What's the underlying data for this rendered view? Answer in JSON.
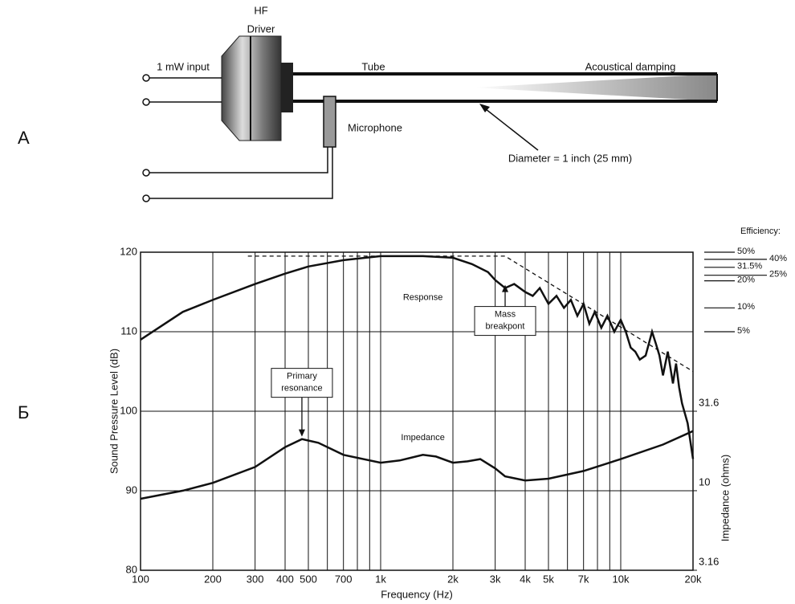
{
  "diagram": {
    "panel_top": "А",
    "panel_bottom": "Б",
    "driver_label": [
      "HF",
      "Driver"
    ],
    "input_label": "1 mW input",
    "tube_label": "Tube",
    "damping_label": "Acoustical damping",
    "microphone_label": "Microphone",
    "diameter_label": "Diameter = 1 inch (25 mm)"
  },
  "chart_data": {
    "type": "line",
    "xlabel": "Frequency (Hz)",
    "ylabel": "Sound Pressure Level (dB)",
    "y2label": "Impedance (ohms)",
    "xscale": "log",
    "y2scale": "log",
    "grid": true,
    "xlim": [
      100,
      20000
    ],
    "ylim": [
      80,
      120
    ],
    "y2lim": [
      3.16,
      316
    ],
    "xticks": [
      100,
      200,
      300,
      400,
      500,
      700,
      {
        "value": 1000,
        "label": "1k"
      },
      {
        "value": 2000,
        "label": "2k"
      },
      {
        "value": 3000,
        "label": "3k"
      },
      {
        "value": 4000,
        "label": "4k"
      },
      {
        "value": 5000,
        "label": "5k"
      },
      {
        "value": 7000,
        "label": "7k"
      },
      {
        "value": 10000,
        "label": "10k"
      },
      {
        "value": 20000,
        "label": "20k"
      }
    ],
    "minor_xticks": [
      600,
      800,
      900,
      6000,
      8000,
      9000
    ],
    "yticks": [
      80,
      90,
      100,
      110,
      120
    ],
    "y2ticks": [
      3.16,
      10,
      31.6
    ],
    "series": [
      {
        "name": "Response",
        "color": "#111111",
        "x": [
          100,
          150,
          200,
          300,
          400,
          500,
          700,
          1000,
          1500,
          2000,
          2400,
          2800,
          3000,
          3300,
          3600,
          4000,
          4300,
          4600,
          5000,
          5400,
          5800,
          6200,
          6600,
          7000,
          7400,
          7800,
          8300,
          8800,
          9400,
          10000,
          10500,
          11000,
          11500,
          12000,
          12700,
          13500,
          14000,
          14500,
          15000,
          15700,
          16500,
          17000,
          17500,
          18000,
          19000,
          20000
        ],
        "values": [
          109,
          112.5,
          114,
          116,
          117.3,
          118.2,
          119,
          119.5,
          119.5,
          119.3,
          118.5,
          117.5,
          116.5,
          115.5,
          116,
          115,
          114.5,
          115.5,
          113.5,
          114.5,
          113,
          114,
          112,
          113.5,
          111,
          112.5,
          110.5,
          112,
          110,
          111.5,
          110,
          108,
          107.5,
          106.5,
          107,
          110,
          108.5,
          107,
          104.5,
          107.5,
          103.5,
          106,
          103,
          101,
          98.5,
          94
        ]
      },
      {
        "name": "Impedance",
        "color": "#111111",
        "axis": "y2",
        "x": [
          100,
          150,
          200,
          300,
          400,
          470,
          550,
          700,
          1000,
          1200,
          1500,
          1700,
          2000,
          2300,
          2600,
          3000,
          3300,
          4000,
          5000,
          7000,
          10000,
          15000,
          20000
        ],
        "values": [
          8.9,
          10,
          11.2,
          14.1,
          18.8,
          21.1,
          20,
          16.8,
          15,
          15.5,
          16.8,
          16.4,
          15,
          15.3,
          15.8,
          13.8,
          12.3,
          11.6,
          11.9,
          13.3,
          15.8,
          19.5,
          23.7
        ]
      }
    ],
    "asymptote": {
      "x": [
        280,
        3300,
        20000
      ],
      "values": [
        119.5,
        119.5,
        105
      ]
    },
    "annotations": [
      {
        "lines": [
          "Primary",
          "resonance"
        ],
        "x": 470,
        "y": 96.5
      },
      {
        "lines": [
          "Mass",
          "breakpont"
        ],
        "x": 3300,
        "y": 116
      }
    ],
    "efficiency_title": "Efficiency:",
    "efficiency_marks": [
      {
        "label": "50%",
        "value": 120
      },
      {
        "label": "40%",
        "value": 119.1
      },
      {
        "label": "31.5%",
        "value": 118.1
      },
      {
        "label": "25%",
        "value": 117.1
      },
      {
        "label": "20%",
        "value": 116.4
      },
      {
        "label": "10%",
        "value": 113
      },
      {
        "label": "5%",
        "value": 110
      }
    ]
  }
}
